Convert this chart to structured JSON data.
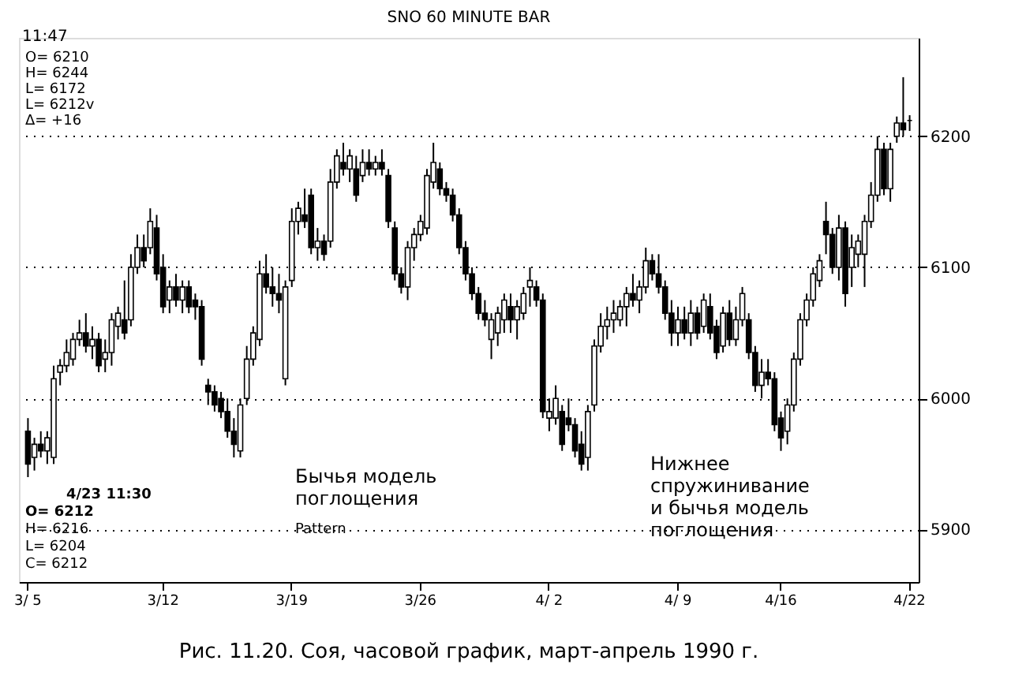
{
  "chart_data": {
    "type": "candlestick",
    "title": "SNO 60 MINUTE BAR",
    "categories": [
      "3/ 5",
      null,
      null,
      null,
      null,
      null,
      null,
      null,
      null,
      null,
      null,
      null,
      null,
      null,
      null,
      null,
      null,
      null,
      null,
      null,
      null,
      "3/12",
      null,
      null,
      null,
      null,
      null,
      null,
      null,
      null,
      null,
      null,
      null,
      null,
      null,
      null,
      null,
      null,
      null,
      null,
      null,
      "3/19",
      null,
      null,
      null,
      null,
      null,
      null,
      null,
      null,
      null,
      null,
      null,
      null,
      null,
      null,
      null,
      null,
      null,
      null,
      null,
      "3/26",
      null,
      null,
      null,
      null,
      null,
      null,
      null,
      null,
      null,
      null,
      null,
      null,
      null,
      null,
      null,
      null,
      null,
      null,
      null,
      "4/ 2",
      null,
      null,
      null,
      null,
      null,
      null,
      null,
      null,
      null,
      null,
      null,
      null,
      null,
      null,
      null,
      null,
      null,
      null,
      null,
      "4/ 9",
      null,
      null,
      null,
      null,
      null,
      null,
      null,
      null,
      null,
      null,
      null,
      null,
      null,
      null,
      null,
      "4/16",
      null,
      null,
      null,
      null,
      null,
      null,
      null,
      null,
      null,
      null,
      null,
      null,
      null,
      null,
      null,
      null,
      null,
      null,
      null,
      "4/22"
    ],
    "ohlc": [
      [
        5975,
        5985,
        5940,
        5950
      ],
      [
        5955,
        5970,
        5945,
        5965
      ],
      [
        5965,
        5975,
        5955,
        5960
      ],
      [
        5960,
        5975,
        5950,
        5970
      ],
      [
        5955,
        6025,
        5950,
        6015
      ],
      [
        6020,
        6030,
        6010,
        6025
      ],
      [
        6025,
        6045,
        6020,
        6035
      ],
      [
        6030,
        6050,
        6025,
        6045
      ],
      [
        6045,
        6060,
        6040,
        6050
      ],
      [
        6050,
        6065,
        6035,
        6040
      ],
      [
        6040,
        6055,
        6030,
        6045
      ],
      [
        6045,
        6050,
        6020,
        6025
      ],
      [
        6030,
        6045,
        6020,
        6035
      ],
      [
        6035,
        6065,
        6025,
        6060
      ],
      [
        6055,
        6070,
        6045,
        6065
      ],
      [
        6060,
        6090,
        6045,
        6050
      ],
      [
        6060,
        6110,
        6055,
        6100
      ],
      [
        6100,
        6125,
        6095,
        6115
      ],
      [
        6115,
        6125,
        6100,
        6105
      ],
      [
        6115,
        6145,
        6110,
        6135
      ],
      [
        6130,
        6140,
        6090,
        6095
      ],
      [
        6100,
        6110,
        6065,
        6070
      ],
      [
        6075,
        6090,
        6065,
        6085
      ],
      [
        6085,
        6095,
        6070,
        6075
      ],
      [
        6075,
        6090,
        6065,
        6085
      ],
      [
        6085,
        6090,
        6065,
        6070
      ],
      [
        6075,
        6080,
        6060,
        6070
      ],
      [
        6070,
        6075,
        6025,
        6030
      ],
      [
        6010,
        6015,
        5995,
        6005
      ],
      [
        6005,
        6010,
        5990,
        5995
      ],
      [
        6000,
        6005,
        5985,
        5990
      ],
      [
        5990,
        6000,
        5970,
        5975
      ],
      [
        5975,
        5985,
        5955,
        5965
      ],
      [
        5960,
        6000,
        5955,
        5995
      ],
      [
        6000,
        6040,
        5995,
        6030
      ],
      [
        6030,
        6055,
        6025,
        6050
      ],
      [
        6045,
        6105,
        6040,
        6095
      ],
      [
        6095,
        6110,
        6080,
        6085
      ],
      [
        6085,
        6100,
        6070,
        6080
      ],
      [
        6080,
        6095,
        6065,
        6075
      ],
      [
        6015,
        6090,
        6010,
        6085
      ],
      [
        6090,
        6145,
        6085,
        6135
      ],
      [
        6135,
        6150,
        6125,
        6145
      ],
      [
        6140,
        6160,
        6130,
        6135
      ],
      [
        6155,
        6160,
        6110,
        6115
      ],
      [
        6115,
        6130,
        6105,
        6120
      ],
      [
        6120,
        6125,
        6105,
        6110
      ],
      [
        6120,
        6175,
        6115,
        6165
      ],
      [
        6165,
        6190,
        6160,
        6185
      ],
      [
        6180,
        6195,
        6170,
        6175
      ],
      [
        6175,
        6190,
        6165,
        6185
      ],
      [
        6175,
        6185,
        6150,
        6155
      ],
      [
        6170,
        6190,
        6165,
        6180
      ],
      [
        6180,
        6190,
        6170,
        6175
      ],
      [
        6175,
        6185,
        6170,
        6180
      ],
      [
        6180,
        6190,
        6170,
        6175
      ],
      [
        6170,
        6175,
        6130,
        6135
      ],
      [
        6130,
        6135,
        6090,
        6095
      ],
      [
        6095,
        6100,
        6080,
        6085
      ],
      [
        6085,
        6120,
        6075,
        6115
      ],
      [
        6115,
        6130,
        6105,
        6125
      ],
      [
        6125,
        6140,
        6120,
        6135
      ],
      [
        6130,
        6175,
        6125,
        6170
      ],
      [
        6165,
        6195,
        6160,
        6180
      ],
      [
        6175,
        6180,
        6155,
        6160
      ],
      [
        6160,
        6165,
        6150,
        6155
      ],
      [
        6155,
        6160,
        6135,
        6140
      ],
      [
        6140,
        6145,
        6110,
        6115
      ],
      [
        6115,
        6120,
        6090,
        6095
      ],
      [
        6095,
        6100,
        6075,
        6080
      ],
      [
        6080,
        6085,
        6060,
        6065
      ],
      [
        6065,
        6075,
        6055,
        6060
      ],
      [
        6045,
        6065,
        6030,
        6060
      ],
      [
        6050,
        6070,
        6040,
        6065
      ],
      [
        6060,
        6080,
        6050,
        6075
      ],
      [
        6070,
        6080,
        6050,
        6060
      ],
      [
        6060,
        6075,
        6045,
        6070
      ],
      [
        6065,
        6085,
        6060,
        6080
      ],
      [
        6085,
        6100,
        6070,
        6090
      ],
      [
        6085,
        6090,
        6070,
        6075
      ],
      [
        6075,
        6080,
        5985,
        5990
      ],
      [
        5985,
        6000,
        5975,
        5990
      ],
      [
        5985,
        6010,
        5980,
        6000
      ],
      [
        5990,
        5995,
        5960,
        5965
      ],
      [
        5985,
        6000,
        5975,
        5980
      ],
      [
        5980,
        5985,
        5955,
        5960
      ],
      [
        5965,
        5975,
        5945,
        5950
      ],
      [
        5955,
        5995,
        5945,
        5990
      ],
      [
        5995,
        6045,
        5990,
        6040
      ],
      [
        6040,
        6065,
        6035,
        6055
      ],
      [
        6055,
        6070,
        6045,
        6060
      ],
      [
        6060,
        6075,
        6050,
        6065
      ],
      [
        6060,
        6075,
        6055,
        6070
      ],
      [
        6070,
        6085,
        6055,
        6080
      ],
      [
        6080,
        6095,
        6070,
        6075
      ],
      [
        6075,
        6090,
        6065,
        6085
      ],
      [
        6085,
        6115,
        6080,
        6105
      ],
      [
        6105,
        6110,
        6090,
        6095
      ],
      [
        6095,
        6110,
        6080,
        6085
      ],
      [
        6085,
        6090,
        6060,
        6065
      ],
      [
        6065,
        6075,
        6040,
        6050
      ],
      [
        6050,
        6070,
        6040,
        6060
      ],
      [
        6060,
        6070,
        6045,
        6050
      ],
      [
        6050,
        6075,
        6040,
        6065
      ],
      [
        6065,
        6070,
        6045,
        6050
      ],
      [
        6055,
        6080,
        6050,
        6075
      ],
      [
        6070,
        6080,
        6045,
        6050
      ],
      [
        6055,
        6060,
        6030,
        6035
      ],
      [
        6040,
        6070,
        6035,
        6065
      ],
      [
        6065,
        6075,
        6040,
        6045
      ],
      [
        6045,
        6070,
        6040,
        6060
      ],
      [
        6060,
        6085,
        6055,
        6080
      ],
      [
        6060,
        6065,
        6030,
        6035
      ],
      [
        6035,
        6040,
        6005,
        6010
      ],
      [
        6010,
        6030,
        6000,
        6020
      ],
      [
        6020,
        6030,
        6010,
        6015
      ],
      [
        6015,
        6020,
        5975,
        5980
      ],
      [
        5985,
        5990,
        5960,
        5970
      ],
      [
        5975,
        6000,
        5965,
        5995
      ],
      [
        5995,
        6035,
        5990,
        6030
      ],
      [
        6030,
        6065,
        6025,
        6060
      ],
      [
        6060,
        6080,
        6055,
        6075
      ],
      [
        6075,
        6100,
        6070,
        6095
      ],
      [
        6090,
        6110,
        6085,
        6105
      ],
      [
        6135,
        6150,
        6110,
        6125
      ],
      [
        6125,
        6130,
        6095,
        6100
      ],
      [
        6100,
        6140,
        6090,
        6130
      ],
      [
        6130,
        6135,
        6070,
        6080
      ],
      [
        6100,
        6125,
        6085,
        6115
      ],
      [
        6110,
        6125,
        6100,
        6120
      ],
      [
        6110,
        6140,
        6085,
        6135
      ],
      [
        6135,
        6165,
        6130,
        6155
      ],
      [
        6155,
        6200,
        6150,
        6190
      ],
      [
        6190,
        6195,
        6155,
        6160
      ],
      [
        6160,
        6195,
        6150,
        6190
      ],
      [
        6200,
        6215,
        6195,
        6210
      ],
      [
        6210,
        6245,
        6200,
        6205
      ],
      [
        6212,
        6216,
        6204,
        6212
      ]
    ],
    "ylim": [
      5860,
      6275
    ],
    "yticks": [
      5900,
      6000,
      6100,
      6200
    ],
    "grid": "y",
    "line_style": "dotted",
    "annotations": [
      "11:47",
      "O= 6210",
      "H= 6244",
      "L= 6172",
      "L= 6212v",
      "Δ=  +16",
      "4/23  11:30",
      "O= 6212",
      "H= 6216",
      "L= 6204",
      "C= 6212",
      "Бычья модель поглощения",
      "Pattern",
      "Нижнее спружинивание и бычья модель поглощения",
      "Рис. 11.20. Соя, часовой график, март-апрель 1990 г."
    ]
  }
}
